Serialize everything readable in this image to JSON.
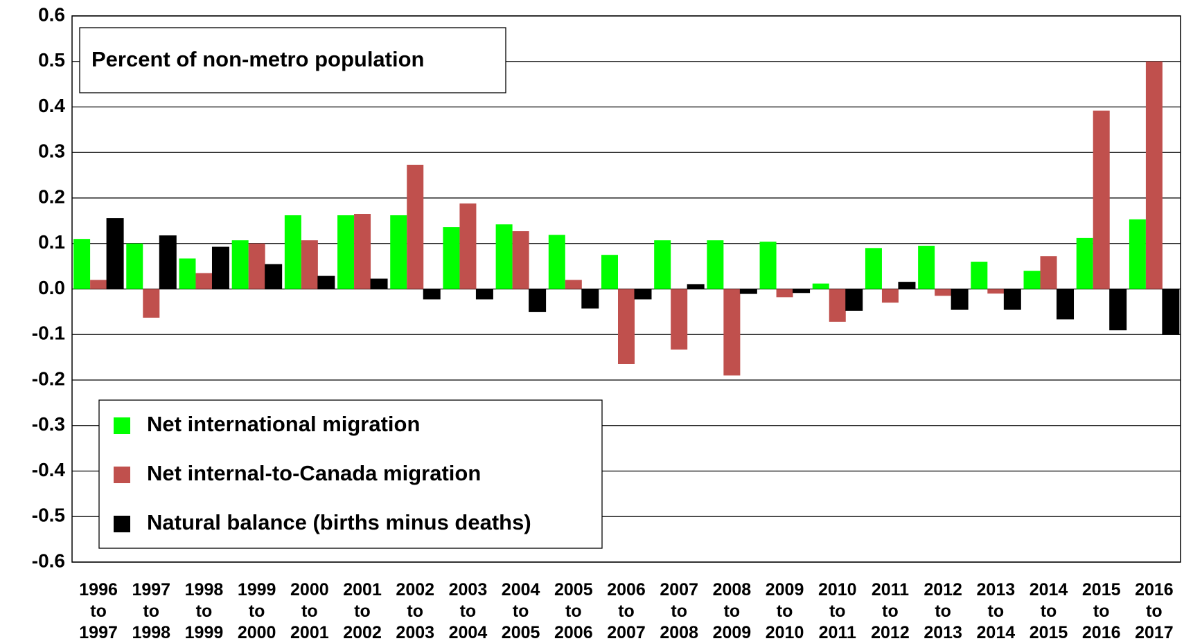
{
  "chart_data": {
    "type": "bar",
    "annotation": "Percent of non-metro population",
    "categories": [
      "1996 to 1997",
      "1997 to 1998",
      "1998 to 1999",
      "1999 to 2000",
      "2000 to 2001",
      "2001 to 2002",
      "2002 to 2003",
      "2003 to 2004",
      "2004 to 2005",
      "2005 to 2006",
      "2006 to 2007",
      "2007 to 2008",
      "2008 to 2009",
      "2009 to 2010",
      "2010 to 2011",
      "2011 to 2012",
      "2012 to 2013",
      "2013 to 2014",
      "2014 to 2015",
      "2015 to 2016",
      "2016 to 2017"
    ],
    "series": [
      {
        "name": "Net international migration",
        "color": "#00ff00",
        "values": [
          0.11,
          0.1,
          0.067,
          0.107,
          0.162,
          0.162,
          0.162,
          0.136,
          0.142,
          0.119,
          0.075,
          0.107,
          0.107,
          0.104,
          0.012,
          0.09,
          0.095,
          0.06,
          0.04,
          0.112,
          0.153
        ]
      },
      {
        "name": "Net internal-to-Canada migration",
        "color": "#c0504d",
        "values": [
          0.02,
          -0.063,
          0.035,
          0.1,
          0.107,
          0.165,
          0.273,
          0.188,
          0.127,
          0.02,
          -0.165,
          -0.133,
          -0.19,
          -0.018,
          -0.072,
          -0.03,
          -0.015,
          -0.01,
          0.072,
          0.392,
          0.5
        ]
      },
      {
        "name": "Natural balance (births minus deaths)",
        "color": "#000000",
        "values": [
          0.155,
          0.117,
          0.092,
          0.054,
          0.028,
          0.022,
          -0.022,
          -0.022,
          -0.05,
          -0.042,
          -0.022,
          0.01,
          -0.01,
          -0.008,
          -0.047,
          0.015,
          -0.045,
          -0.045,
          -0.066,
          -0.09,
          -0.1
        ]
      }
    ],
    "ylim": [
      -0.6,
      0.6
    ],
    "yticks": [
      0.6,
      0.5,
      0.4,
      0.3,
      0.2,
      0.1,
      {
        "value": 0,
        "label": "0.0"
      },
      -0.1,
      -0.2,
      -0.3,
      -0.4,
      -0.5,
      -0.6
    ],
    "grid": true
  }
}
